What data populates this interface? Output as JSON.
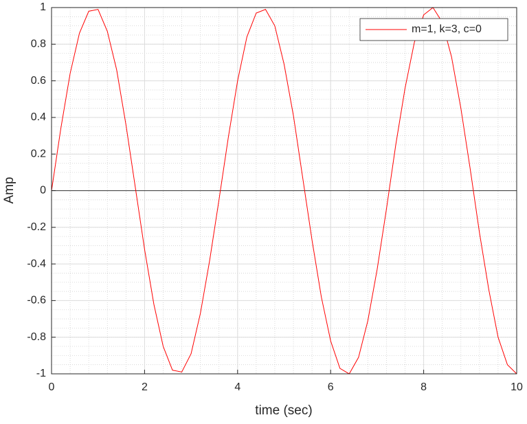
{
  "chart_data": {
    "type": "line",
    "xlabel": "time (sec)",
    "ylabel": "Amp",
    "x": [
      0,
      0.2,
      0.4,
      0.6,
      0.8,
      1,
      1.2,
      1.4,
      1.6,
      1.8,
      2,
      2.2,
      2.4,
      2.6,
      2.8,
      3,
      3.2,
      3.4,
      3.6,
      3.8,
      4,
      4.2,
      4.4,
      4.6,
      4.8,
      5,
      5.2,
      5.4,
      5.6,
      5.8,
      6,
      6.2,
      6.4,
      6.6,
      6.8,
      7,
      7.2,
      7.4,
      7.6,
      7.8,
      8,
      8.2,
      8.4,
      8.6,
      8.8,
      9,
      9.2,
      9.4,
      9.6,
      9.8,
      10
    ],
    "series": [
      {
        "name": "m=1, k=3, c=0",
        "color": "#ff0000",
        "values": [
          0,
          0.34,
          0.64,
          0.86,
          0.98,
          0.99,
          0.87,
          0.66,
          0.36,
          0.02,
          -0.32,
          -0.62,
          -0.85,
          -0.98,
          -0.99,
          -0.89,
          -0.67,
          -0.38,
          -0.05,
          0.29,
          0.6,
          0.84,
          0.97,
          0.99,
          0.9,
          0.69,
          0.41,
          0.07,
          -0.27,
          -0.58,
          -0.82,
          -0.97,
          -1,
          -0.91,
          -0.71,
          -0.43,
          -0.1,
          0.25,
          0.56,
          0.81,
          0.96,
          1,
          0.92,
          0.73,
          0.45,
          0.12,
          -0.23,
          -0.54,
          -0.8,
          -0.95,
          -1
        ]
      }
    ],
    "xlim": [
      0,
      10
    ],
    "xticks": [
      0,
      2,
      4,
      6,
      8,
      10
    ],
    "ylim": [
      -1,
      1
    ],
    "yticks": [
      -1,
      {
        "value": -0.8,
        "label": "-0.8"
      },
      {
        "value": -0.6,
        "label": "-0.6"
      },
      {
        "value": -0.4,
        "label": "-0.4"
      },
      {
        "value": -0.2,
        "label": "-0.2"
      },
      0,
      0.2,
      0.4,
      0.6,
      0.8,
      1
    ],
    "hline": 0,
    "grid": true,
    "minor_grid": true,
    "legend_position": "top-right"
  }
}
